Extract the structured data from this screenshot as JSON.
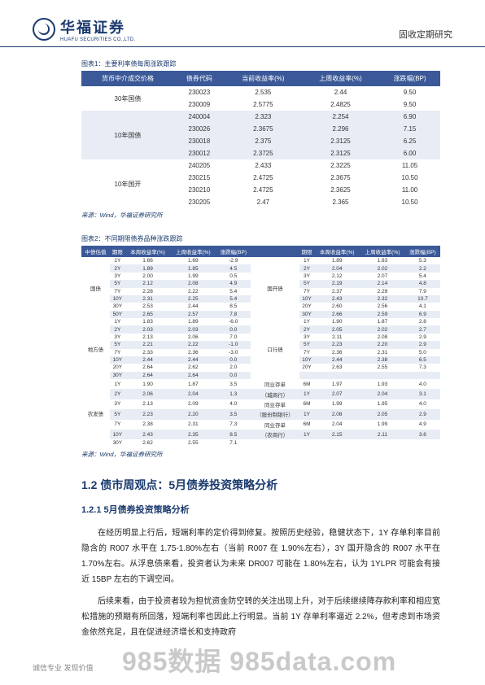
{
  "header": {
    "company_cn": "华福证券",
    "company_en": "HUAFU SECURITIES CO.,LTD.",
    "doc_type": "固收定期研究"
  },
  "table1": {
    "caption": "图表1：主要利率债每周涨跌跟踪",
    "headers": [
      "货币中介成交价格",
      "债券代码",
      "当前收益率(%)",
      "上周收益率(%)",
      "涨跌幅(BP)"
    ],
    "groups": [
      {
        "label": "30年国债",
        "rows": [
          [
            "230023",
            "2.535",
            "2.44",
            "9.50"
          ],
          [
            "230009",
            "2.5775",
            "2.4825",
            "9.50"
          ]
        ]
      },
      {
        "label": "10年国债",
        "rows": [
          [
            "240004",
            "2.323",
            "2.254",
            "6.90"
          ],
          [
            "230026",
            "2.3675",
            "2.296",
            "7.15"
          ],
          [
            "230018",
            "2.375",
            "2.3125",
            "6.25"
          ],
          [
            "230012",
            "2.3725",
            "2.3125",
            "6.00"
          ]
        ]
      },
      {
        "label": "10年国开",
        "rows": [
          [
            "240205",
            "2.433",
            "2.3225",
            "11.05"
          ],
          [
            "230215",
            "2.4725",
            "2.3675",
            "10.50"
          ],
          [
            "230210",
            "2.4725",
            "2.3625",
            "11.00"
          ],
          [
            "230205",
            "2.47",
            "2.365",
            "10.50"
          ]
        ]
      }
    ],
    "source": "来源：Wind，华福证券研究所"
  },
  "table2": {
    "caption": "图表2：不同期限债券品种涨跌跟踪",
    "headers_left": [
      "中债估值",
      "期限",
      "本周收益率(%)",
      "上周收益率(%)",
      "涨跌幅(BP)"
    ],
    "headers_right": [
      "",
      "期限",
      "本周收益率(%)",
      "上周收益率(%)",
      "涨跌幅(BP)"
    ],
    "blocks": [
      {
        "left_cat": "国债",
        "right_cat": "国开债",
        "rows": [
          [
            "1Y",
            "1.66",
            "1.69",
            "-2.9",
            "1Y",
            "1.89",
            "1.83",
            "5.3"
          ],
          [
            "2Y",
            "1.89",
            "1.85",
            "4.5",
            "2Y",
            "2.04",
            "2.02",
            "2.2"
          ],
          [
            "3Y",
            "2.00",
            "1.99",
            "0.5",
            "3Y",
            "2.12",
            "2.07",
            "5.4"
          ],
          [
            "5Y",
            "2.12",
            "2.08",
            "4.9",
            "5Y",
            "2.19",
            "2.14",
            "4.8"
          ],
          [
            "7Y",
            "2.28",
            "2.22",
            "5.4",
            "7Y",
            "2.37",
            "2.29",
            "7.9"
          ],
          [
            "10Y",
            "2.31",
            "2.25",
            "5.4",
            "10Y",
            "2.43",
            "2.32",
            "10.7"
          ],
          [
            "30Y",
            "2.53",
            "2.44",
            "8.5",
            "20Y",
            "2.60",
            "2.56",
            "4.1"
          ],
          [
            "50Y",
            "2.65",
            "2.57",
            "7.8",
            "30Y",
            "2.66",
            "2.59",
            "6.9"
          ]
        ]
      },
      {
        "left_cat": "地方债",
        "right_cat": "口行债",
        "rows": [
          [
            "1Y",
            "1.83",
            "1.89",
            "-6.0",
            "1Y",
            "1.90",
            "1.87",
            "2.8"
          ],
          [
            "2Y",
            "2.03",
            "2.03",
            "0.0",
            "2Y",
            "2.05",
            "2.02",
            "2.7"
          ],
          [
            "3Y",
            "2.13",
            "2.06",
            "7.0",
            "3Y",
            "2.11",
            "2.08",
            "2.9"
          ],
          [
            "5Y",
            "2.21",
            "2.22",
            "-1.0",
            "5Y",
            "2.23",
            "2.20",
            "2.9"
          ],
          [
            "7Y",
            "2.33",
            "2.36",
            "-3.0",
            "7Y",
            "2.36",
            "2.31",
            "5.0"
          ],
          [
            "10Y",
            "2.44",
            "2.44",
            "0.0",
            "10Y",
            "2.44",
            "2.38",
            "6.5"
          ],
          [
            "20Y",
            "2.64",
            "2.62",
            "2.0",
            "20Y",
            "2.63",
            "2.55",
            "7.3"
          ],
          [
            "30Y",
            "2.64",
            "2.64",
            "0.0",
            "",
            "",
            "",
            ""
          ]
        ]
      },
      {
        "left_cat": "农发债",
        "right_cat": "",
        "rows": [
          [
            "1Y",
            "1.90",
            "1.87",
            "3.5",
            "同业存单",
            "6M",
            "1.97",
            "1.93",
            "4.0"
          ],
          [
            "2Y",
            "2.06",
            "2.04",
            "1.3",
            "（城商行）",
            "1Y",
            "2.07",
            "2.04",
            "3.1"
          ],
          [
            "3Y",
            "2.13",
            "2.09",
            "4.0",
            "同业存单",
            "6M",
            "1.99",
            "1.95",
            "4.0"
          ],
          [
            "5Y",
            "2.23",
            "2.20",
            "3.5",
            "（股份制银行）",
            "1Y",
            "2.08",
            "2.05",
            "2.9"
          ],
          [
            "7Y",
            "2.38",
            "2.31",
            "7.3",
            "同业存单",
            "6M",
            "2.04",
            "1.99",
            "4.9"
          ],
          [
            "10Y",
            "2.43",
            "2.35",
            "8.5",
            "（农商行）",
            "1Y",
            "2.15",
            "2.11",
            "3.6"
          ],
          [
            "30Y",
            "2.62",
            "2.55",
            "7.1",
            "",
            "",
            "",
            "",
            ""
          ]
        ]
      }
    ],
    "source": "来源：Wind，华福证券研究所"
  },
  "sections": {
    "h1": "1.2 债市周观点：5月债券投资策略分析",
    "h2": "1.2.1 5月债券投资策略分析",
    "p1": "在经历明显上行后，短端利率的定价得到修复。按照历史经验，稳健状态下，1Y 存单利率目前隐含的 R007 水平在 1.75-1.80%左右（当前 R007 在 1.90%左右），3Y 国开隐含的 R007 水平在 1.70%左右。从浮息债来看，投资者认为未来 DR007 可能在 1.80%左右，认为 1YLPR 可能会有接近 15BP 左右的下调空间。",
    "p2": "后续来看，由于投资者较为担忧资金防空转的关注出现上升，对于后续继续降存款利率和相应宽松措施的预期有所回落，短端利率也因此上行明显。当前 1Y 存单利率逼近 2.2%，但考虑到市场资金依然充足，且在促进经济增长和支持政府"
  },
  "footer": {
    "tagline": "诚信专业  发现价值"
  },
  "watermark": "985数据 985data.com",
  "colors": {
    "brand": "#1a3a6e",
    "th_bg": "#3b5998",
    "stripe": "#e8edf5"
  }
}
